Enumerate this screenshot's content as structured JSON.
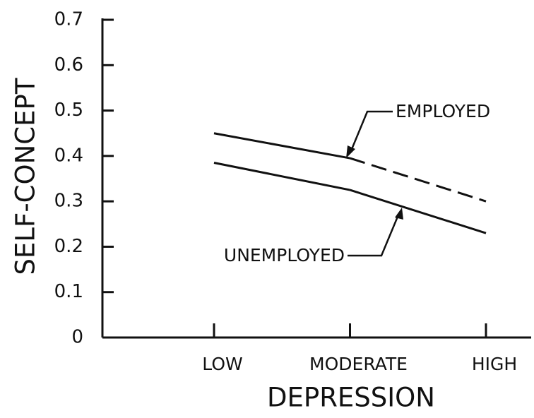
{
  "chart_data": {
    "type": "line",
    "x_label": "DEPRESSION",
    "y_label": "SELF-CONCEPT",
    "categories": [
      "LOW",
      "MODERATE",
      "HIGH"
    ],
    "series": [
      {
        "name": "EMPLOYED",
        "color": "#111111",
        "values": [
          0.45,
          0.395,
          0.3
        ],
        "segment_styles": [
          "solid",
          "dashed"
        ]
      },
      {
        "name": "UNEMPLOYED",
        "color": "#111111",
        "values": [
          0.385,
          0.325,
          0.23
        ],
        "segment_styles": [
          "solid",
          "solid"
        ]
      }
    ],
    "ylim": [
      0,
      0.7
    ],
    "yticks": [
      0,
      0.1,
      0.2,
      0.3,
      0.4,
      0.5,
      0.6,
      0.7
    ],
    "grid": false
  }
}
